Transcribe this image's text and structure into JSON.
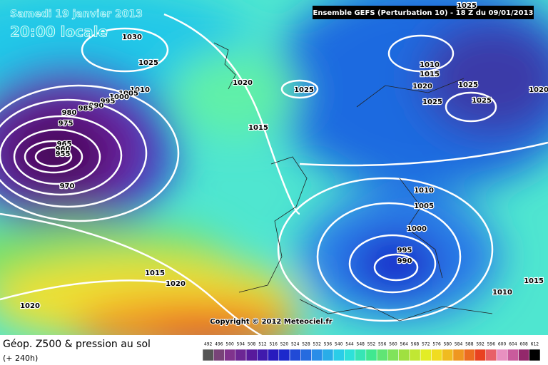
{
  "header": {
    "date": "Samedi 19 janvier 2013",
    "time": "20:00 locale",
    "run": "Ensemble GEFS (Perturbation 10)  -  18 Z du 09/01/2013"
  },
  "copyright": "Copyright © 2012 Meteociel.fr",
  "footer": {
    "title": "Géop. Z500 & pression au sol",
    "lead": "(+ 240h)"
  },
  "isobar_labels": [
    "1030",
    "1025",
    "1020",
    "1025",
    "1015",
    "1010",
    "1005",
    "1000",
    "995",
    "990",
    "985",
    "980",
    "975",
    "965",
    "960",
    "955",
    "970",
    "1025",
    "1010",
    "1015",
    "1020",
    "1025",
    "1025",
    "1025",
    "1020",
    "1010",
    "1005",
    "1000",
    "995",
    "990",
    "1015",
    "1020",
    "1020",
    "1010",
    "1015"
  ],
  "scale": [
    "492",
    "496",
    "500",
    "504",
    "508",
    "512",
    "516",
    "520",
    "524",
    "528",
    "532",
    "536",
    "540",
    "544",
    "548",
    "552",
    "556",
    "560",
    "564",
    "568",
    "572",
    "576",
    "580",
    "584",
    "588",
    "592",
    "596",
    "600",
    "604",
    "608",
    "612"
  ]
}
